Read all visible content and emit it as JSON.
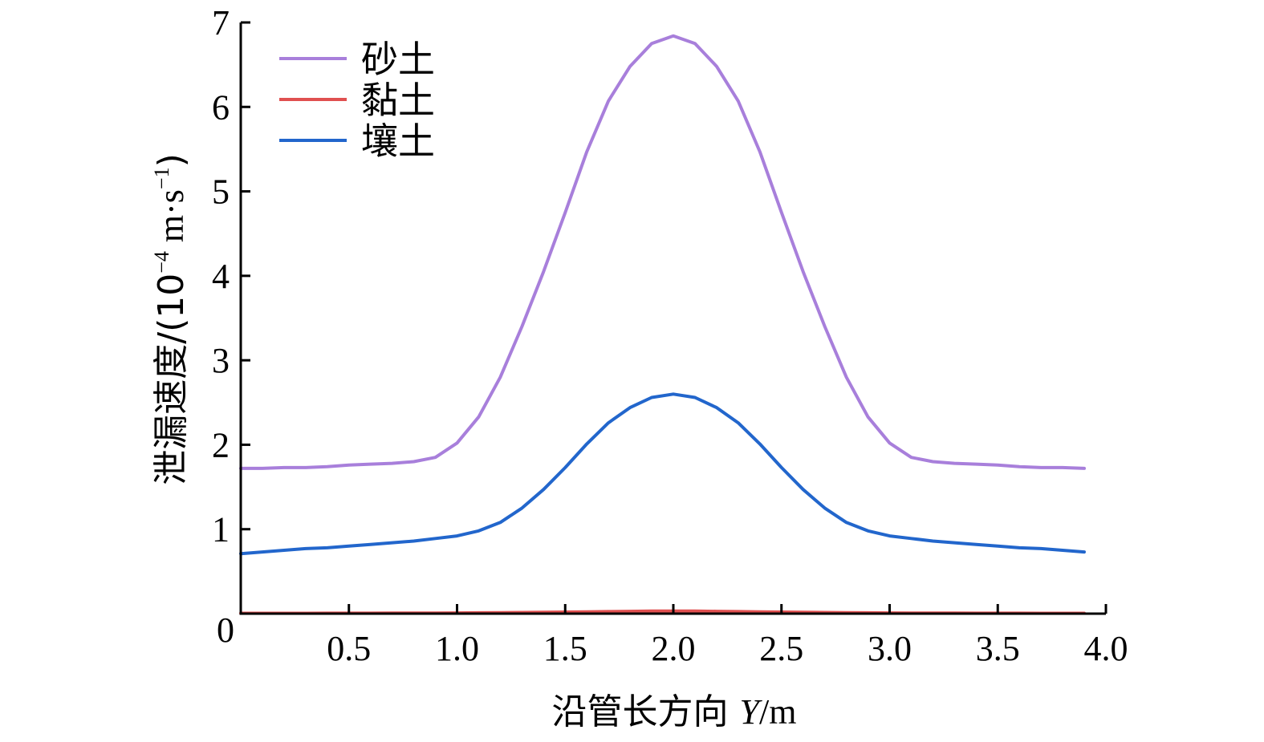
{
  "chart_data": {
    "type": "line",
    "xlabel_prefix": "沿管长方向 ",
    "xlabel_var": "Y",
    "xlabel_unit": "/m",
    "ylabel_prefix": "泄漏速度/(10",
    "ylabel_exp": "−4",
    "ylabel_mid": " m·s",
    "ylabel_exp2": "−1",
    "ylabel_suffix": ")",
    "xlim": [
      0,
      4.0
    ],
    "ylim": [
      0,
      7
    ],
    "x_ticks": [
      0.5,
      1.0,
      1.5,
      2.0,
      2.5,
      3.0,
      3.5,
      4.0
    ],
    "x_tick_labels": [
      "0.5",
      "1.0",
      "1.5",
      "2.0",
      "2.5",
      "3.0",
      "3.5",
      "4.0"
    ],
    "y_ticks": [
      0,
      1,
      2,
      3,
      4,
      5,
      6,
      7
    ],
    "y_tick_labels": [
      "0",
      "1",
      "2",
      "3",
      "4",
      "5",
      "6",
      "7"
    ],
    "legend_position": "top-left",
    "grid": false,
    "x": [
      0.0,
      0.1,
      0.2,
      0.3,
      0.4,
      0.5,
      0.6,
      0.7,
      0.8,
      0.9,
      1.0,
      1.1,
      1.2,
      1.3,
      1.4,
      1.5,
      1.6,
      1.7,
      1.8,
      1.9,
      2.0,
      2.1,
      2.2,
      2.3,
      2.4,
      2.5,
      2.6,
      2.7,
      2.8,
      2.9,
      3.0,
      3.1,
      3.2,
      3.3,
      3.4,
      3.5,
      3.6,
      3.7,
      3.8,
      3.9
    ],
    "series": [
      {
        "name": "砂土",
        "color": "#a87fdb",
        "values": [
          1.72,
          1.72,
          1.73,
          1.73,
          1.74,
          1.76,
          1.77,
          1.78,
          1.8,
          1.85,
          2.02,
          2.33,
          2.8,
          3.4,
          4.05,
          4.75,
          5.47,
          6.07,
          6.48,
          6.75,
          6.84,
          6.75,
          6.48,
          6.07,
          5.47,
          4.75,
          4.05,
          3.4,
          2.8,
          2.33,
          2.02,
          1.85,
          1.8,
          1.78,
          1.77,
          1.76,
          1.74,
          1.73,
          1.73,
          1.72
        ]
      },
      {
        "name": "黏土",
        "color": "#e05050",
        "values": [
          0.005,
          0.005,
          0.005,
          0.005,
          0.006,
          0.006,
          0.006,
          0.007,
          0.007,
          0.008,
          0.009,
          0.01,
          0.012,
          0.014,
          0.016,
          0.019,
          0.022,
          0.025,
          0.028,
          0.03,
          0.031,
          0.03,
          0.028,
          0.025,
          0.022,
          0.019,
          0.016,
          0.014,
          0.012,
          0.01,
          0.009,
          0.008,
          0.007,
          0.007,
          0.006,
          0.006,
          0.006,
          0.005,
          0.005,
          0.005
        ]
      },
      {
        "name": "壤土",
        "color": "#2266cc",
        "values": [
          0.71,
          0.73,
          0.75,
          0.77,
          0.78,
          0.8,
          0.82,
          0.84,
          0.86,
          0.89,
          0.92,
          0.98,
          1.08,
          1.25,
          1.47,
          1.73,
          2.01,
          2.26,
          2.44,
          2.56,
          2.6,
          2.56,
          2.44,
          2.26,
          2.01,
          1.73,
          1.47,
          1.25,
          1.08,
          0.98,
          0.92,
          0.89,
          0.86,
          0.84,
          0.82,
          0.8,
          0.78,
          0.77,
          0.75,
          0.73
        ]
      }
    ]
  }
}
